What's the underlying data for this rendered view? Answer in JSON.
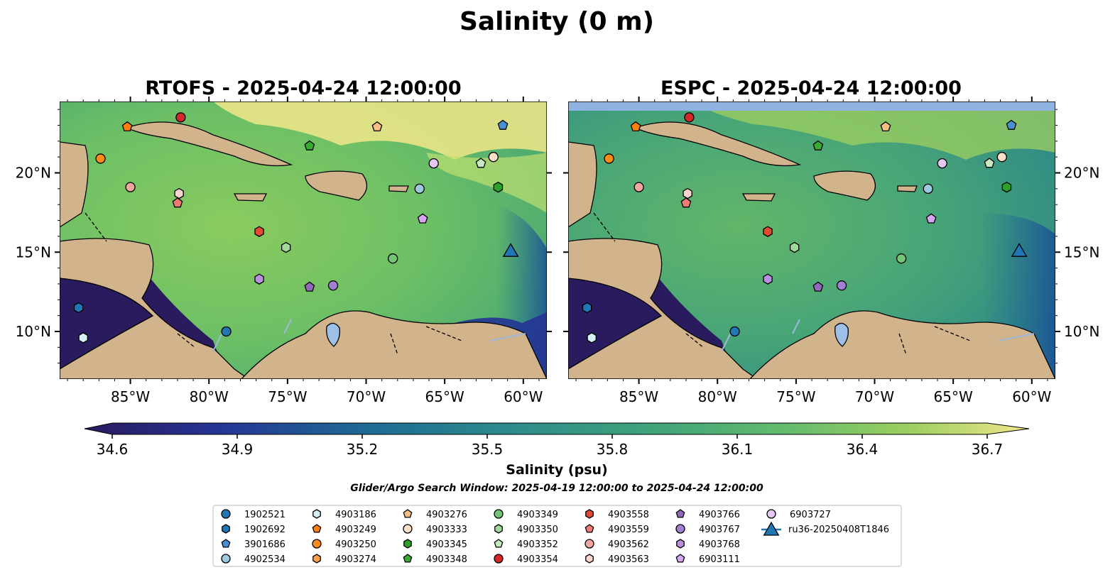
{
  "figure": {
    "title": "Salinity (0 m)",
    "note": "Glider/Argo Search Window: 2025-04-19 12:00:00 to 2025-04-24 12:00:00"
  },
  "panels": [
    {
      "title": "RTOFS - 2025-04-24 12:00:00",
      "model": "RTOFS"
    },
    {
      "title": "ESPC - 2025-04-24 12:00:00",
      "model": "ESPC"
    }
  ],
  "axes": {
    "lon_ticks": [
      -85,
      -80,
      -75,
      -70,
      -65,
      -60
    ],
    "lon_labels": [
      "85°W",
      "80°W",
      "75°W",
      "70°W",
      "65°W",
      "60°W"
    ],
    "lat_ticks": [
      10,
      15,
      20
    ],
    "lat_labels": [
      "10°N",
      "15°N",
      "20°N"
    ],
    "lon_range": [
      -89.5,
      -58.5
    ],
    "lat_range": [
      7,
      24.5
    ]
  },
  "colorbar": {
    "label": "Salinity (psu)",
    "range": [
      34.6,
      36.7
    ],
    "ticks": [
      34.6,
      34.9,
      35.2,
      35.5,
      35.8,
      36.1,
      36.4,
      36.7
    ],
    "tick_labels": [
      "34.6",
      "34.9",
      "35.2",
      "35.5",
      "35.8",
      "36.1",
      "36.4",
      "36.7"
    ],
    "colormap": [
      "#2a1a5e",
      "#253494",
      "#1e6b94",
      "#2b8c8c",
      "#3fa37a",
      "#62bb6d",
      "#9fd05f",
      "#f2e78a"
    ],
    "extend": "both"
  },
  "chart_data": {
    "type": "scatter",
    "title": "Salinity (0 m)",
    "xlabel": "",
    "ylabel": "",
    "xlim": [
      -89.5,
      -58.5
    ],
    "ylim": [
      7,
      24.5
    ],
    "legend_location": "bottom-center",
    "series": [
      {
        "name": "1902521",
        "marker": "circle",
        "color": "#1f77b4",
        "x": [
          -78.9
        ],
        "y": [
          10.0
        ]
      },
      {
        "name": "1902692",
        "marker": "hexagon",
        "color": "#1f77b4",
        "x": [
          -88.3
        ],
        "y": [
          11.5
        ]
      },
      {
        "name": "3901686",
        "marker": "pentagon",
        "color": "#4a90d0",
        "x": [
          -61.3
        ],
        "y": [
          23.0
        ]
      },
      {
        "name": "4902534",
        "marker": "circle",
        "color": "#9ecae1",
        "x": [
          -66.6
        ],
        "y": [
          19.0
        ]
      },
      {
        "name": "4903186",
        "marker": "hexagon",
        "color": "#d6f0f6",
        "x": [
          -88.0
        ],
        "y": [
          9.6
        ]
      },
      {
        "name": "4903249",
        "marker": "pentagon",
        "color": "#ff7f0e",
        "x": [
          -85.2
        ],
        "y": [
          22.9
        ]
      },
      {
        "name": "4903250",
        "marker": "circle",
        "color": "#ff8c1a",
        "x": [
          -86.9
        ],
        "y": [
          20.9
        ]
      },
      {
        "name": "4903274",
        "marker": "hexagon",
        "color": "#ff9f4a",
        "x": [],
        "y": []
      },
      {
        "name": "4903276",
        "marker": "pentagon",
        "color": "#f7c083",
        "x": [
          -69.3
        ],
        "y": [
          22.9
        ]
      },
      {
        "name": "4903333",
        "marker": "circle",
        "color": "#fde0c5",
        "x": [
          -61.9
        ],
        "y": [
          21.0
        ]
      },
      {
        "name": "4903345",
        "marker": "hexagon",
        "color": "#2ca02c",
        "x": [
          -61.6
        ],
        "y": [
          19.1
        ]
      },
      {
        "name": "4903348",
        "marker": "pentagon",
        "color": "#3aaa35",
        "x": [
          -73.6
        ],
        "y": [
          21.7
        ]
      },
      {
        "name": "4903349",
        "marker": "circle",
        "color": "#74c476",
        "x": [
          -68.3
        ],
        "y": [
          14.6
        ]
      },
      {
        "name": "4903350",
        "marker": "hexagon",
        "color": "#a1d99b",
        "x": [
          -75.1
        ],
        "y": [
          15.3
        ]
      },
      {
        "name": "4903352",
        "marker": "pentagon",
        "color": "#c7e9c0",
        "x": [
          -62.7
        ],
        "y": [
          20.6
        ]
      },
      {
        "name": "4903354",
        "marker": "circle",
        "color": "#d62728",
        "x": [
          -81.8
        ],
        "y": [
          23.5
        ]
      },
      {
        "name": "4903558",
        "marker": "hexagon",
        "color": "#e34a33",
        "x": [
          -76.8
        ],
        "y": [
          16.3
        ]
      },
      {
        "name": "4903559",
        "marker": "pentagon",
        "color": "#f07b72",
        "x": [
          -82.0
        ],
        "y": [
          18.1
        ]
      },
      {
        "name": "4903562",
        "marker": "circle",
        "color": "#f4a6a0",
        "x": [
          -85.0
        ],
        "y": [
          19.1
        ]
      },
      {
        "name": "4903563",
        "marker": "hexagon",
        "color": "#fcd5cf",
        "x": [
          -81.9
        ],
        "y": [
          18.7
        ]
      },
      {
        "name": "4903766",
        "marker": "pentagon",
        "color": "#9467bd",
        "x": [
          -73.6
        ],
        "y": [
          12.8
        ]
      },
      {
        "name": "4903767",
        "marker": "circle",
        "color": "#a37fd1",
        "x": [
          -72.1
        ],
        "y": [
          12.9
        ]
      },
      {
        "name": "4903768",
        "marker": "hexagon",
        "color": "#b892e0",
        "x": [
          -76.8
        ],
        "y": [
          13.3
        ]
      },
      {
        "name": "6903111",
        "marker": "pentagon",
        "color": "#d6a6f0",
        "x": [
          -66.4
        ],
        "y": [
          17.1
        ]
      },
      {
        "name": "6903727",
        "marker": "circle",
        "color": "#e6c6f5",
        "x": [
          -65.7
        ],
        "y": [
          20.6
        ]
      },
      {
        "name": "ru36-20250408T1846",
        "marker": "triangle",
        "color": "#1f77b4",
        "x": [
          -60.8
        ],
        "y": [
          15.0
        ]
      }
    ]
  }
}
